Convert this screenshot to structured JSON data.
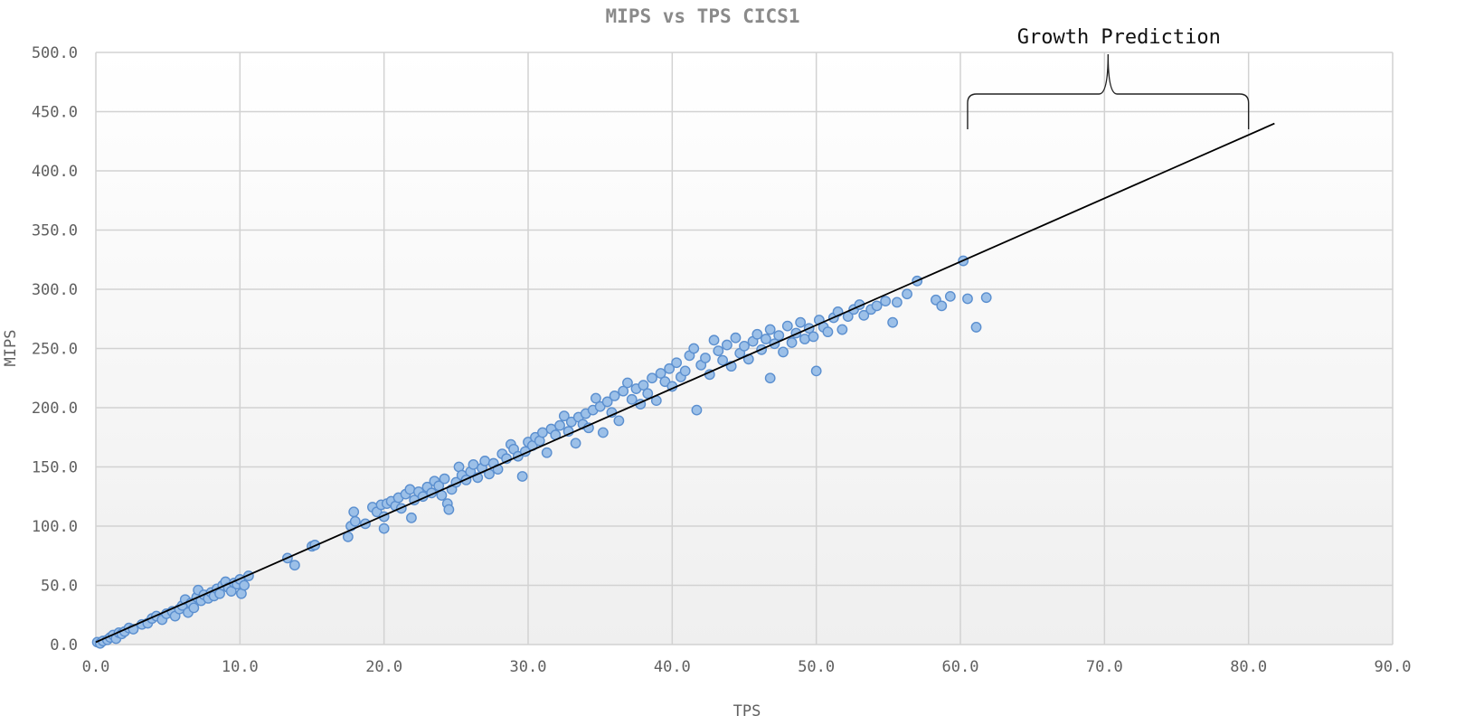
{
  "chart_data": {
    "type": "scatter",
    "title": "MIPS vs TPS CICS1",
    "xlabel": "TPS",
    "ylabel": "MIPS",
    "xlim": [
      0,
      90
    ],
    "ylim": [
      0,
      500
    ],
    "x_ticks": [
      "0.0",
      "10.0",
      "20.0",
      "30.0",
      "40.0",
      "50.0",
      "60.0",
      "70.0",
      "80.0",
      "90.0"
    ],
    "y_ticks": [
      "0.0",
      "50.0",
      "100.0",
      "150.0",
      "200.0",
      "250.0",
      "300.0",
      "350.0",
      "400.0",
      "450.0",
      "500.0"
    ],
    "grid": true,
    "series": [
      {
        "points": [
          [
            0.1,
            2
          ],
          [
            0.3,
            1
          ],
          [
            0.5,
            3
          ],
          [
            0.8,
            4
          ],
          [
            1.0,
            6
          ],
          [
            1.2,
            8
          ],
          [
            1.4,
            5
          ],
          [
            1.6,
            10
          ],
          [
            1.8,
            9
          ],
          [
            2.0,
            11
          ],
          [
            2.3,
            14
          ],
          [
            2.6,
            13
          ],
          [
            3.2,
            17
          ],
          [
            3.6,
            18
          ],
          [
            3.9,
            22
          ],
          [
            4.2,
            24
          ],
          [
            4.6,
            21
          ],
          [
            4.9,
            26
          ],
          [
            5.3,
            28
          ],
          [
            5.5,
            24
          ],
          [
            5.8,
            30
          ],
          [
            6.0,
            33
          ],
          [
            6.2,
            38
          ],
          [
            6.4,
            27
          ],
          [
            6.6,
            35
          ],
          [
            6.8,
            31
          ],
          [
            7.0,
            40
          ],
          [
            7.1,
            46
          ],
          [
            7.3,
            37
          ],
          [
            7.5,
            42
          ],
          [
            7.8,
            39
          ],
          [
            8.0,
            44
          ],
          [
            8.2,
            41
          ],
          [
            8.4,
            47
          ],
          [
            8.6,
            43
          ],
          [
            8.8,
            50
          ],
          [
            9.0,
            53
          ],
          [
            9.2,
            48
          ],
          [
            9.4,
            45
          ],
          [
            9.6,
            52
          ],
          [
            9.8,
            51
          ],
          [
            10.0,
            55
          ],
          [
            10.1,
            43
          ],
          [
            10.3,
            50
          ],
          [
            10.6,
            58
          ],
          [
            13.3,
            73
          ],
          [
            13.8,
            67
          ],
          [
            15.0,
            83
          ],
          [
            15.2,
            84
          ],
          [
            17.5,
            91
          ],
          [
            17.7,
            100
          ],
          [
            17.9,
            112
          ],
          [
            18.0,
            104
          ],
          [
            18.7,
            102
          ],
          [
            19.2,
            116
          ],
          [
            19.5,
            112
          ],
          [
            19.8,
            118
          ],
          [
            20.0,
            108
          ],
          [
            20.0,
            98
          ],
          [
            20.2,
            119
          ],
          [
            20.5,
            121
          ],
          [
            20.8,
            117
          ],
          [
            21.0,
            124
          ],
          [
            21.2,
            115
          ],
          [
            21.5,
            127
          ],
          [
            21.8,
            131
          ],
          [
            21.9,
            107
          ],
          [
            22.1,
            122
          ],
          [
            22.4,
            129
          ],
          [
            22.7,
            125
          ],
          [
            23.0,
            133
          ],
          [
            23.3,
            128
          ],
          [
            23.5,
            138
          ],
          [
            23.8,
            134
          ],
          [
            24.0,
            126
          ],
          [
            24.2,
            140
          ],
          [
            24.4,
            119
          ],
          [
            24.5,
            114
          ],
          [
            24.7,
            131
          ],
          [
            25.0,
            137
          ],
          [
            25.2,
            150
          ],
          [
            25.4,
            143
          ],
          [
            25.7,
            139
          ],
          [
            26.0,
            146
          ],
          [
            26.2,
            152
          ],
          [
            26.5,
            141
          ],
          [
            26.8,
            149
          ],
          [
            27.0,
            155
          ],
          [
            27.3,
            144
          ],
          [
            27.6,
            153
          ],
          [
            27.9,
            148
          ],
          [
            28.2,
            161
          ],
          [
            28.5,
            157
          ],
          [
            28.8,
            169
          ],
          [
            29.0,
            165
          ],
          [
            29.3,
            159
          ],
          [
            29.6,
            142
          ],
          [
            29.8,
            163
          ],
          [
            30.0,
            171
          ],
          [
            30.3,
            168
          ],
          [
            30.5,
            175
          ],
          [
            30.8,
            172
          ],
          [
            31.0,
            179
          ],
          [
            31.3,
            162
          ],
          [
            31.6,
            182
          ],
          [
            31.9,
            177
          ],
          [
            32.2,
            185
          ],
          [
            32.5,
            193
          ],
          [
            32.8,
            180
          ],
          [
            33.0,
            188
          ],
          [
            33.3,
            170
          ],
          [
            33.5,
            192
          ],
          [
            33.8,
            186
          ],
          [
            34.0,
            195
          ],
          [
            34.2,
            183
          ],
          [
            34.5,
            198
          ],
          [
            34.7,
            208
          ],
          [
            35.0,
            201
          ],
          [
            35.2,
            179
          ],
          [
            35.5,
            205
          ],
          [
            35.8,
            196
          ],
          [
            36.0,
            210
          ],
          [
            36.3,
            189
          ],
          [
            36.6,
            214
          ],
          [
            36.9,
            221
          ],
          [
            37.2,
            207
          ],
          [
            37.5,
            216
          ],
          [
            37.8,
            203
          ],
          [
            38.0,
            219
          ],
          [
            38.3,
            212
          ],
          [
            38.6,
            225
          ],
          [
            38.9,
            206
          ],
          [
            39.2,
            229
          ],
          [
            39.5,
            222
          ],
          [
            39.8,
            233
          ],
          [
            40.0,
            218
          ],
          [
            40.3,
            238
          ],
          [
            40.6,
            226
          ],
          [
            40.9,
            231
          ],
          [
            41.2,
            244
          ],
          [
            41.5,
            250
          ],
          [
            41.7,
            198
          ],
          [
            42.0,
            236
          ],
          [
            42.3,
            242
          ],
          [
            42.6,
            228
          ],
          [
            42.9,
            257
          ],
          [
            43.2,
            248
          ],
          [
            43.5,
            240
          ],
          [
            43.8,
            253
          ],
          [
            44.1,
            235
          ],
          [
            44.4,
            259
          ],
          [
            44.7,
            246
          ],
          [
            45.0,
            252
          ],
          [
            45.3,
            241
          ],
          [
            45.6,
            256
          ],
          [
            45.9,
            262
          ],
          [
            46.2,
            249
          ],
          [
            46.5,
            258
          ],
          [
            46.8,
            266
          ],
          [
            46.8,
            225
          ],
          [
            47.1,
            254
          ],
          [
            47.4,
            261
          ],
          [
            47.7,
            247
          ],
          [
            48.0,
            269
          ],
          [
            48.3,
            255
          ],
          [
            48.6,
            263
          ],
          [
            48.9,
            272
          ],
          [
            49.2,
            258
          ],
          [
            49.5,
            267
          ],
          [
            49.8,
            260
          ],
          [
            50.0,
            231
          ],
          [
            50.2,
            274
          ],
          [
            50.5,
            268
          ],
          [
            50.8,
            264
          ],
          [
            51.2,
            276
          ],
          [
            51.5,
            281
          ],
          [
            51.8,
            266
          ],
          [
            52.2,
            277
          ],
          [
            52.6,
            283
          ],
          [
            53.0,
            287
          ],
          [
            53.3,
            278
          ],
          [
            53.8,
            283
          ],
          [
            54.2,
            286
          ],
          [
            54.8,
            290
          ],
          [
            55.3,
            272
          ],
          [
            55.6,
            289
          ],
          [
            56.3,
            296
          ],
          [
            57.0,
            307
          ],
          [
            58.3,
            291
          ],
          [
            58.7,
            286
          ],
          [
            59.3,
            294
          ],
          [
            60.2,
            324
          ],
          [
            60.5,
            292
          ],
          [
            61.1,
            268
          ],
          [
            61.8,
            293
          ]
        ]
      }
    ],
    "trendline": {
      "x": [
        0,
        81.8
      ],
      "y": [
        2,
        440
      ]
    },
    "annotations": [
      {
        "text": "Growth Prediction",
        "x_from": 60.5,
        "x_to": 80
      }
    ]
  }
}
